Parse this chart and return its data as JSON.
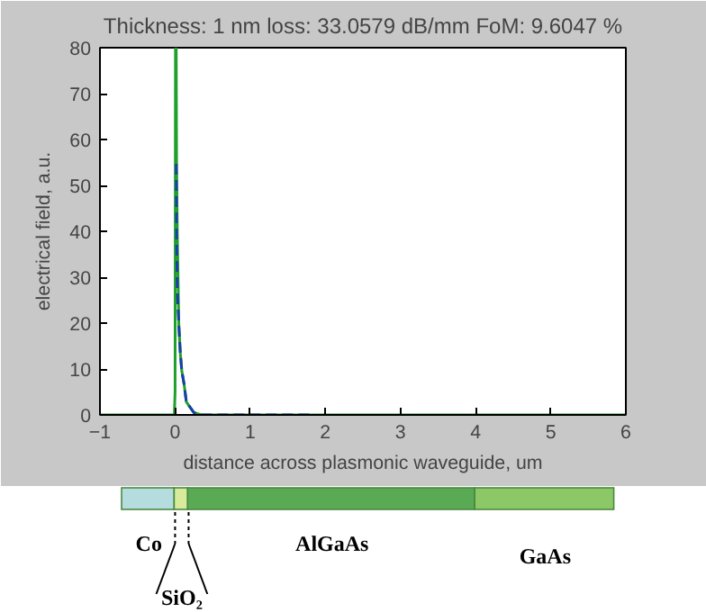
{
  "chart_data": {
    "type": "line",
    "title": "Thickness: 1 nm loss: 33.0579 dB/mm FoM: 9.6047 %",
    "xlabel": "distance across plasmonic waveguide, um",
    "ylabel": "electrical field, a.u.",
    "xlim": [
      -1,
      6
    ],
    "ylim": [
      0,
      80
    ],
    "xticks": [
      -1,
      0,
      1,
      2,
      3,
      4,
      5,
      6
    ],
    "yticks": [
      0,
      10,
      20,
      30,
      40,
      50,
      60,
      70,
      80
    ],
    "grid": false,
    "series": [
      {
        "color": "#1fa02a",
        "line_style": "solid",
        "x": [
          -1,
          -0.01,
          0,
          0.005,
          0.015,
          0.02,
          0.03,
          0.05,
          0.07,
          0.09,
          0.12,
          0.15,
          0.25,
          0.35,
          6
        ],
        "values": [
          0,
          0,
          5,
          80,
          80,
          55,
          39,
          19.5,
          13.4,
          9.5,
          6.7,
          2.8,
          0.5,
          0,
          0
        ]
      },
      {
        "color": "#1a3fa8",
        "line_style": "dashed",
        "x": [
          0.015,
          0.02,
          0.03,
          0.05,
          0.07,
          0.09,
          0.12,
          0.15,
          0.25,
          0.35,
          1.8
        ],
        "values": [
          54.7,
          39,
          27,
          19.5,
          13.4,
          9.5,
          6.7,
          2.8,
          0.5,
          0,
          0
        ]
      }
    ],
    "annotations": [
      "Co",
      "SiO₂",
      "AlGaAs",
      "GaAs"
    ]
  }
}
